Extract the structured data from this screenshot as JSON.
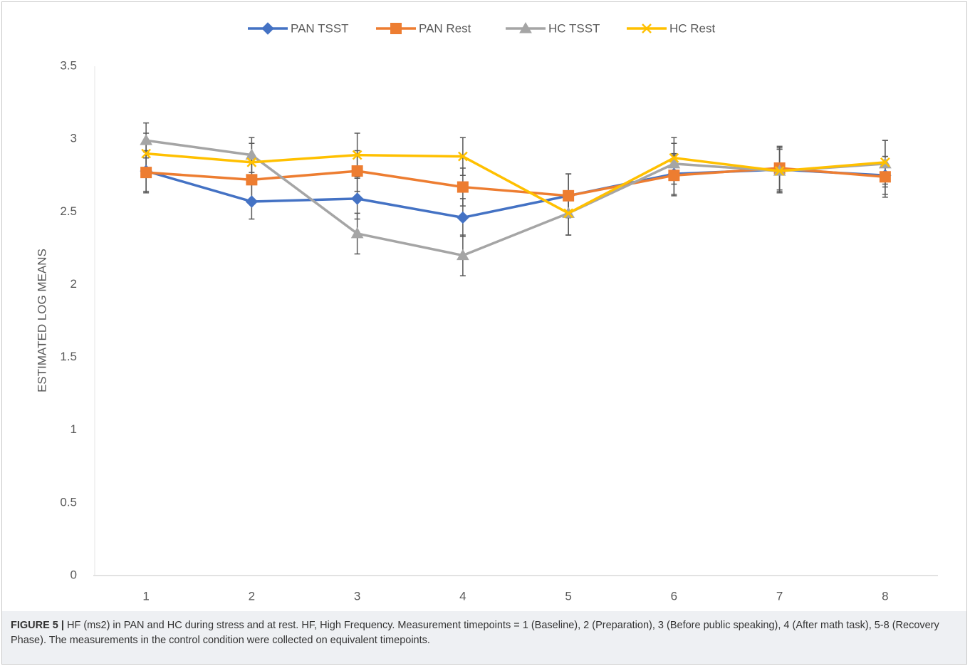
{
  "chart_data": {
    "type": "line",
    "y_label": "ESTIMATED LOG MEANS",
    "categories": [
      "1",
      "2",
      "3",
      "4",
      "5",
      "6",
      "7",
      "8"
    ],
    "ylim": [
      0,
      3.5
    ],
    "yticks": [
      0,
      0.5,
      1,
      1.5,
      2,
      2.5,
      3,
      3.5
    ],
    "grid": false,
    "legend": "top",
    "series": [
      {
        "name": "PAN TSST",
        "color": "#4472c4",
        "marker": "diamond",
        "values": [
          2.78,
          2.57,
          2.59,
          2.46,
          2.61,
          2.76,
          2.79,
          2.75
        ],
        "errors": [
          0.14,
          0.12,
          0.14,
          0.13,
          0.15,
          0.14,
          0.15,
          0.13
        ]
      },
      {
        "name": "PAN Rest",
        "color": "#ed7d31",
        "marker": "square",
        "values": [
          2.77,
          2.72,
          2.78,
          2.67,
          2.61,
          2.75,
          2.8,
          2.74
        ],
        "errors": [
          0.14,
          0.13,
          0.14,
          0.13,
          0.15,
          0.14,
          0.15,
          0.14
        ]
      },
      {
        "name": "HC TSST",
        "color": "#a5a5a5",
        "marker": "triangle",
        "values": [
          2.99,
          2.89,
          2.35,
          2.2,
          2.49,
          2.83,
          2.78,
          2.83
        ],
        "errors": [
          0.12,
          0.12,
          0.14,
          0.14,
          0.15,
          0.14,
          0.15,
          0.16
        ]
      },
      {
        "name": "HC Rest",
        "color": "#ffc000",
        "marker": "x",
        "values": [
          2.9,
          2.84,
          2.89,
          2.88,
          2.49,
          2.87,
          2.78,
          2.84
        ],
        "errors": [
          0.14,
          0.13,
          0.15,
          0.13,
          0.15,
          0.14,
          0.15,
          0.15
        ]
      }
    ]
  },
  "caption": {
    "label": "FIGURE 5 |",
    "text": "HF (ms2) in PAN and HC during stress and at rest. HF, High Frequency. Measurement timepoints = 1 (Baseline), 2 (Preparation), 3 (Before public speaking), 4 (After math task), 5-8 (Recovery Phase). The measurements in the control condition were collected on equivalent timepoints."
  }
}
